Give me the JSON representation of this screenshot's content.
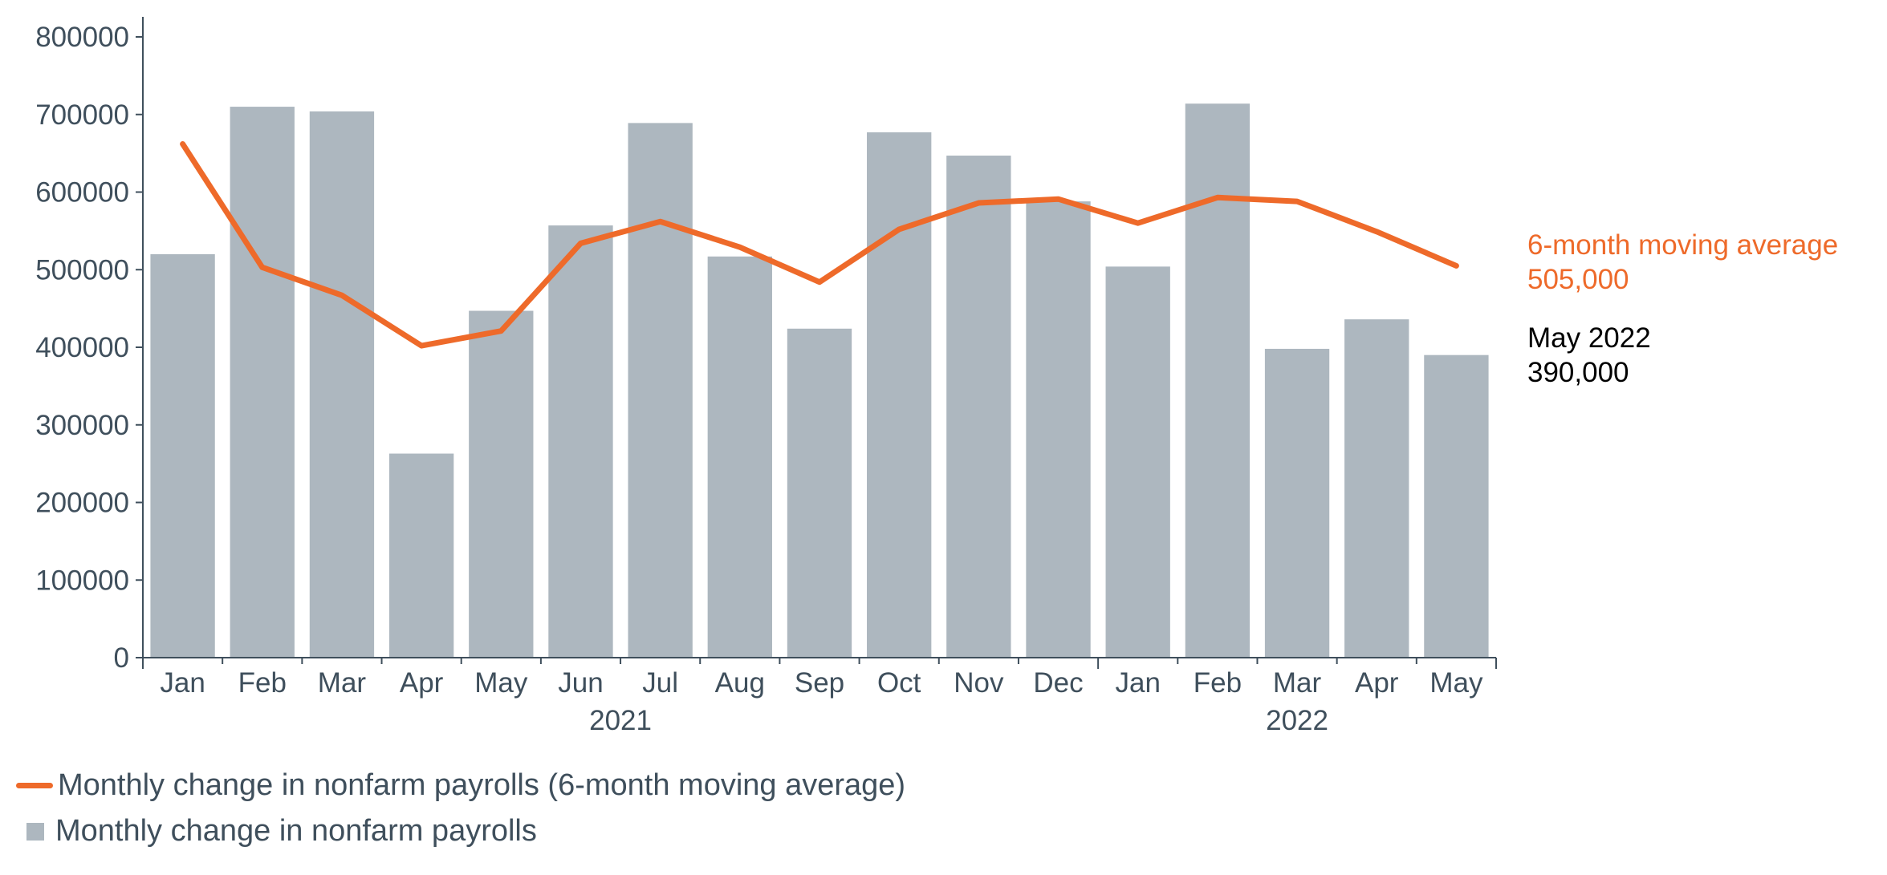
{
  "colors": {
    "bar": "#adb7bf",
    "line": "#ee6a2a",
    "axis": "#3f4f5c",
    "text": "#3f4f5c",
    "annotation_last": "#000000"
  },
  "chart_data": {
    "type": "bar",
    "title": "",
    "xlabel": "",
    "ylabel": "",
    "ylim": [
      0,
      800000
    ],
    "y_ticks": [
      "0",
      "100000",
      "200000",
      "300000",
      "400000",
      "500000",
      "600000",
      "700000",
      "800000"
    ],
    "categories": [
      "Jan",
      "Feb",
      "Mar",
      "Apr",
      "May",
      "Jun",
      "Jul",
      "Aug",
      "Sep",
      "Oct",
      "Nov",
      "Dec",
      "Jan",
      "Feb",
      "Mar",
      "Apr",
      "May"
    ],
    "year_groups": [
      {
        "label": "2021",
        "start": 0,
        "end": 11
      },
      {
        "label": "2022",
        "start": 12,
        "end": 16
      }
    ],
    "series": [
      {
        "name": "Monthly change in nonfarm payrolls",
        "type": "bar",
        "values": [
          520000,
          710000,
          704000,
          263000,
          447000,
          557000,
          689000,
          517000,
          424000,
          677000,
          647000,
          588000,
          504000,
          714000,
          398000,
          436000,
          390000
        ]
      },
      {
        "name": "Monthly change in nonfarm payrolls (6-month moving average)",
        "type": "line",
        "values": [
          662000,
          503000,
          467000,
          402000,
          421000,
          534000,
          562000,
          529000,
          484000,
          552000,
          586000,
          591000,
          560000,
          593000,
          588000,
          549000,
          505000
        ]
      }
    ],
    "annotations": {
      "moving_average": {
        "label": "6-month moving average",
        "value": "505,000"
      },
      "last_month": {
        "label": "May 2022",
        "value": "390,000"
      }
    },
    "legend": {
      "position": "bottom-left",
      "line_label": "Monthly change in nonfarm payrolls (6-month moving average)",
      "bar_label": "Monthly change in nonfarm payrolls"
    }
  }
}
